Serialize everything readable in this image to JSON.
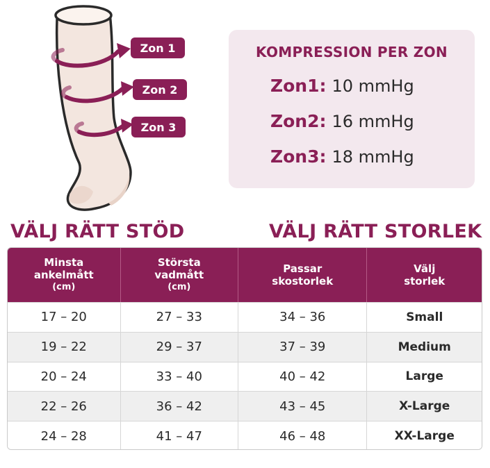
{
  "zones": [
    {
      "tag": "Zon 1",
      "name": "Zon1:",
      "value": "10 mmHg"
    },
    {
      "tag": "Zon 2",
      "name": "Zon2:",
      "value": "16 mmHg"
    },
    {
      "tag": "Zon 3",
      "name": "Zon3:",
      "value": "18 mmHg"
    }
  ],
  "compression": {
    "title": "KOMPRESSION PER ZON"
  },
  "headings": {
    "left": "VÄLJ RÄTT STÖD",
    "right": "VÄLJ RÄTT STORLEK"
  },
  "table": {
    "columns": [
      {
        "line1": "Minsta",
        "line2": "ankelmått",
        "unit": "(cm)"
      },
      {
        "line1": "Största",
        "line2": "vadmått",
        "unit": "(cm)"
      },
      {
        "line1": "Passar",
        "line2": "skostorlek",
        "unit": ""
      },
      {
        "line1": "Välj",
        "line2": "storlek",
        "unit": ""
      }
    ],
    "rows": [
      {
        "ankle": "17 – 20",
        "calf": "27 – 33",
        "shoe": "34 – 36",
        "size": "Small"
      },
      {
        "ankle": "19 – 22",
        "calf": "29 – 37",
        "shoe": "37 – 39",
        "size": "Medium"
      },
      {
        "ankle": "20 – 24",
        "calf": "33 – 40",
        "shoe": "40 – 42",
        "size": "Large"
      },
      {
        "ankle": "22 – 26",
        "calf": "36 – 42",
        "shoe": "43 – 45",
        "size": "X-Large"
      },
      {
        "ankle": "24 – 28",
        "calf": "41 – 47",
        "shoe": "46 – 48",
        "size": "XX-Large"
      }
    ]
  },
  "colors": {
    "accent": "#8a1f56",
    "box_bg": "#f3e8ee",
    "sock": "#f3e6df",
    "row_alt": "#efefef"
  }
}
